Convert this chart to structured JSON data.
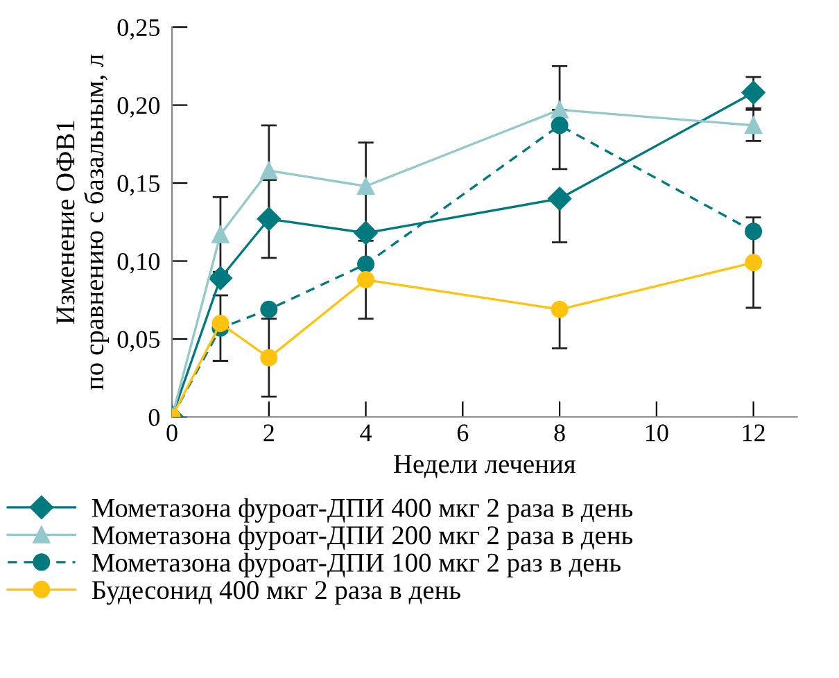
{
  "chart_data": {
    "type": "line",
    "xlabel": "Недели лечения",
    "ylabel": "Изменение ОФВ1\nпо сравнению с базальным, л",
    "x": [
      0,
      1,
      2,
      4,
      8,
      12
    ],
    "series": [
      {
        "name": "Мометазона фуроат-ДПИ 400 мкг 2 раза в день",
        "color": "#00797f",
        "marker": "diamond",
        "line_style": "solid",
        "values": [
          0,
          0.089,
          0.127,
          0.118,
          0.14,
          0.208
        ],
        "errors": [
          null,
          null,
          0.025,
          null,
          [
            0.112,
            0.14
          ],
          0.01
        ]
      },
      {
        "name": "Мометазона фуроат-ДПИ 200 мкг 2 раза в день",
        "color": "#93c9cc",
        "marker": "triangle",
        "line_style": "solid",
        "values": [
          0,
          0.117,
          0.158,
          0.148,
          0.197,
          0.187
        ],
        "errors": [
          null,
          0.024,
          0.029,
          0.028,
          [
            0.197,
            0.225
          ],
          0.01
        ]
      },
      {
        "name": "Мометазона фуроат-ДПИ 100 мкг 2 раз в день",
        "color": "#00797f",
        "marker": "circle",
        "line_style": "dashed",
        "values": [
          0,
          0.057,
          0.069,
          0.098,
          0.187,
          0.119
        ],
        "errors": [
          null,
          0.021,
          null,
          null,
          [
            0.159,
            0.187
          ],
          null
        ]
      },
      {
        "name": "Будесонид 400 мкг 2 раза в день",
        "color": "#ffc20e",
        "marker": "circle",
        "line_style": "solid",
        "values": [
          0,
          0.06,
          0.038,
          0.088,
          0.069,
          0.099
        ],
        "errors": [
          null,
          null,
          0.025,
          0.025,
          [
            0.044,
            0.069
          ],
          0.029
        ]
      }
    ],
    "xlim": [
      0,
      12.9
    ],
    "xticks": [
      0,
      2,
      4,
      6,
      8,
      10,
      12
    ],
    "ylim": [
      0,
      0.25
    ],
    "yticks": [
      {
        "value": 0,
        "label": "0"
      },
      {
        "value": 0.05,
        "label": "0,05"
      },
      {
        "value": 0.1,
        "label": "0,10"
      },
      {
        "value": 0.15,
        "label": "0,15"
      },
      {
        "value": 0.2,
        "label": "0,20"
      },
      {
        "value": 0.25,
        "label": "0,25"
      }
    ],
    "grid": false,
    "legend": "bottom"
  }
}
